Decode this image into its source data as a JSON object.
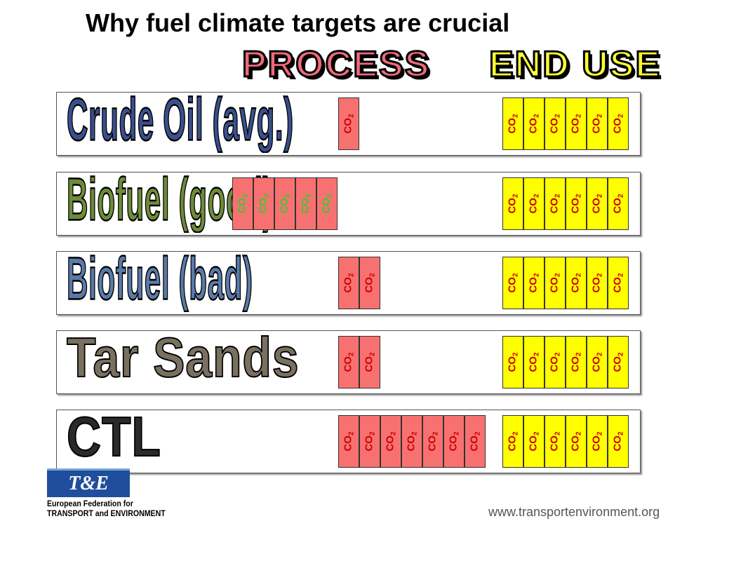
{
  "title": "Why fuel climate targets are crucial",
  "columns": {
    "process": "PROCESS",
    "end_use": "END USE"
  },
  "colors": {
    "process_box": "#f87171",
    "end_use_box": "#ffff00",
    "label_red": "#cc0000",
    "label_green": "#33cc33",
    "process_head": "#f06a7a",
    "end_use_head": "#ffff33"
  },
  "co2_label": "CO",
  "co2_sub": "2",
  "rows": [
    {
      "name": "Crude Oil (avg.)",
      "process_count": 1,
      "end_use_count": 6,
      "process_label_color": "red",
      "label_color": "#3a4f8c"
    },
    {
      "name": "Biofuel (good)",
      "process_count": 5,
      "end_use_count": 6,
      "process_label_color": "green",
      "label_color": "#6d8c3a"
    },
    {
      "name": "Biofuel (bad)",
      "process_count": 2,
      "end_use_count": 6,
      "process_label_color": "red",
      "label_color": "#5a7aa8"
    },
    {
      "name": "Tar Sands",
      "process_count": 2,
      "end_use_count": 6,
      "process_label_color": "red",
      "label_color": "#7a7060"
    },
    {
      "name": "CTL",
      "process_count": 7,
      "end_use_count": 6,
      "process_label_color": "red",
      "label_color": "#2a2a2a"
    }
  ],
  "logo": {
    "mark": "T&E",
    "org_line1": "European Federation for",
    "org_line2": "TRANSPORT and ENVIRONMENT"
  },
  "url": "www.transportenvironment.org"
}
